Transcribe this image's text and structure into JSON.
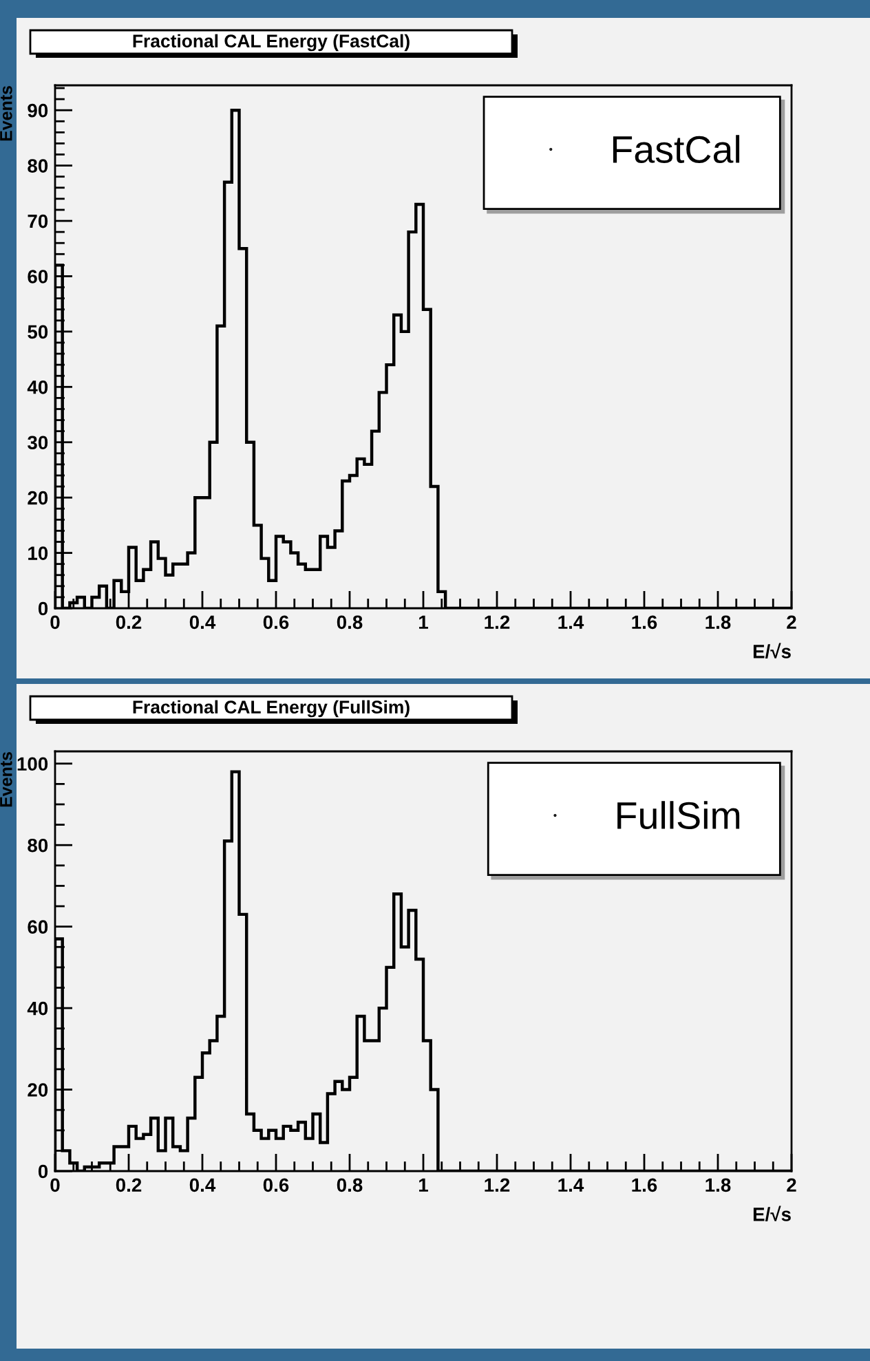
{
  "chart_data": [
    {
      "type": "histogram",
      "title": "Fractional CAL Energy (FastCal)",
      "ylabel": "Events",
      "xlabel": "E/√s",
      "bins": [
        0,
        0.02,
        0.04,
        0.06,
        0.08,
        0.1,
        0.12,
        0.14,
        0.16,
        0.18,
        0.2,
        0.22,
        0.24,
        0.26,
        0.28,
        0.3,
        0.32,
        0.34,
        0.36,
        0.38,
        0.4,
        0.42,
        0.44,
        0.46,
        0.48,
        0.5,
        0.52,
        0.54,
        0.56,
        0.58,
        0.6,
        0.62,
        0.64,
        0.66,
        0.68,
        0.7,
        0.72,
        0.74,
        0.76,
        0.78,
        0.8,
        0.82,
        0.84,
        0.86,
        0.88,
        0.9,
        0.92,
        0.94,
        0.96,
        0.98,
        1,
        1.02,
        1.04,
        1.06,
        1.08,
        1.1,
        1.12,
        1.14,
        1.16,
        1.18,
        1.2,
        1.22,
        1.24,
        1.26,
        1.28,
        1.3,
        1.32,
        1.34,
        1.36,
        1.38,
        1.4,
        1.42,
        1.44,
        1.46,
        1.48,
        1.5,
        1.52,
        1.54,
        1.56,
        1.58,
        1.6,
        1.62,
        1.64,
        1.66,
        1.68,
        1.7,
        1.72,
        1.74,
        1.76,
        1.78,
        1.8,
        1.82,
        1.84,
        1.86,
        1.88,
        1.9,
        1.92,
        1.94,
        1.96,
        1.98,
        2
      ],
      "series": [
        {
          "name": "FastCal",
          "color": "#000000",
          "values": [
            62,
            0,
            1,
            2,
            0,
            2,
            4,
            0,
            5,
            3,
            11,
            5,
            7,
            12,
            9,
            6,
            8,
            8,
            10,
            20,
            20,
            30,
            51,
            77,
            90,
            65,
            30,
            15,
            9,
            5,
            13,
            12,
            10,
            8,
            7,
            7,
            13,
            11,
            14,
            23,
            24,
            27,
            26,
            32,
            39,
            44,
            53,
            50,
            68,
            73,
            54,
            22,
            3,
            0,
            0,
            0,
            0,
            0,
            0,
            0,
            0,
            0,
            0,
            0,
            0,
            0,
            0,
            0,
            0,
            0,
            0,
            0,
            0,
            0,
            0,
            0,
            0,
            0,
            0,
            0,
            0,
            0,
            0,
            0,
            0,
            0,
            0,
            0,
            0,
            0,
            0,
            0,
            0,
            0,
            0,
            0,
            0,
            0,
            0,
            0
          ]
        }
      ],
      "xlim": [
        0,
        2
      ],
      "ylim": [
        0,
        94.5
      ],
      "xticks": [
        0,
        0.2,
        0.4,
        0.6,
        0.8,
        1,
        1.2,
        1.4,
        1.6,
        1.8,
        2
      ],
      "yticks": [
        0,
        10,
        20,
        30,
        40,
        50,
        60,
        70,
        80,
        90
      ],
      "legend": "top right",
      "grid": false
    },
    {
      "type": "histogram",
      "title": "Fractional CAL Energy (FullSim)",
      "ylabel": "Events",
      "xlabel": "E/√s",
      "bins": [
        0,
        0.02,
        0.04,
        0.06,
        0.08,
        0.1,
        0.12,
        0.14,
        0.16,
        0.18,
        0.2,
        0.22,
        0.24,
        0.26,
        0.28,
        0.3,
        0.32,
        0.34,
        0.36,
        0.38,
        0.4,
        0.42,
        0.44,
        0.46,
        0.48,
        0.5,
        0.52,
        0.54,
        0.56,
        0.58,
        0.6,
        0.62,
        0.64,
        0.66,
        0.68,
        0.7,
        0.72,
        0.74,
        0.76,
        0.78,
        0.8,
        0.82,
        0.84,
        0.86,
        0.88,
        0.9,
        0.92,
        0.94,
        0.96,
        0.98,
        1,
        1.02,
        1.04,
        1.06,
        1.08,
        1.1,
        1.12,
        1.14,
        1.16,
        1.18,
        1.2,
        1.22,
        1.24,
        1.26,
        1.28,
        1.3,
        1.32,
        1.34,
        1.36,
        1.38,
        1.4,
        1.42,
        1.44,
        1.46,
        1.48,
        1.5,
        1.52,
        1.54,
        1.56,
        1.58,
        1.6,
        1.62,
        1.64,
        1.66,
        1.68,
        1.7,
        1.72,
        1.74,
        1.76,
        1.78,
        1.8,
        1.82,
        1.84,
        1.86,
        1.88,
        1.9,
        1.92,
        1.94,
        1.96,
        1.98,
        2
      ],
      "series": [
        {
          "name": "FullSim",
          "color": "#000000",
          "values": [
            57,
            5,
            2,
            0,
            1,
            1,
            2,
            2,
            6,
            6,
            11,
            8,
            9,
            13,
            5,
            13,
            6,
            5,
            13,
            23,
            29,
            32,
            38,
            81,
            98,
            63,
            14,
            10,
            8,
            10,
            8,
            11,
            10,
            12,
            8,
            14,
            7,
            19,
            22,
            20,
            23,
            38,
            32,
            32,
            40,
            50,
            68,
            55,
            64,
            52,
            32,
            20,
            0,
            0,
            0,
            0,
            0,
            0,
            0,
            0,
            0,
            0,
            0,
            0,
            0,
            0,
            0,
            0,
            0,
            0,
            0,
            0,
            0,
            0,
            0,
            0,
            0,
            0,
            0,
            0,
            0,
            0,
            0,
            0,
            0,
            0,
            0,
            0,
            0,
            0,
            0,
            0,
            0,
            0,
            0,
            0,
            0,
            0,
            0,
            0
          ]
        }
      ],
      "xlim": [
        0,
        2
      ],
      "ylim": [
        0,
        103
      ],
      "xticks": [
        0,
        0.2,
        0.4,
        0.6,
        0.8,
        1,
        1.2,
        1.4,
        1.6,
        1.8,
        2
      ],
      "yticks": [
        0,
        20,
        40,
        60,
        80,
        100
      ],
      "legend": "top right",
      "grid": false
    }
  ]
}
